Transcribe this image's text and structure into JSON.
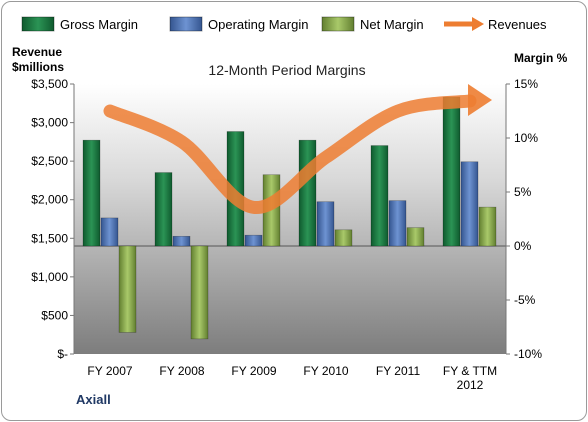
{
  "chart_data": {
    "type": "bar",
    "title": "12-Month Period Margins",
    "categories": [
      "FY 2007",
      "FY 2008",
      "FY 2009",
      "FY 2010",
      "FY 2011",
      "FY & TTM 2012"
    ],
    "left_axis": {
      "label_line1": "Revenue",
      "label_line2": "$millions",
      "ticks": [
        "$-",
        "$500",
        "$1,000",
        "$1,500",
        "$2,000",
        "$2,500",
        "$3,000",
        "$3,500"
      ],
      "ylim": [
        0,
        3500
      ]
    },
    "right_axis": {
      "label": "Margin %",
      "ticks": [
        "-10%",
        "-5%",
        "0%",
        "5%",
        "10%",
        "15%"
      ],
      "ylim": [
        -10,
        15
      ]
    },
    "series": [
      {
        "name": "Gross Margin",
        "axis": "right",
        "color": "#1e7a44",
        "values": [
          9.8,
          6.8,
          10.6,
          9.8,
          9.3,
          13.8
        ]
      },
      {
        "name": "Operating Margin",
        "axis": "right",
        "color": "#4f77bd",
        "values": [
          2.6,
          0.9,
          1.0,
          4.1,
          4.2,
          7.8
        ]
      },
      {
        "name": "Net Margin",
        "axis": "right",
        "color": "#8aae4c",
        "values": [
          -8.0,
          -8.6,
          6.6,
          1.5,
          1.7,
          3.6
        ]
      },
      {
        "name": "Revenues",
        "type": "line",
        "axis": "left",
        "color": "#ed7d31",
        "values": [
          3150,
          2750,
          1900,
          2550,
          3150,
          3280
        ]
      }
    ],
    "legend_position": "top",
    "grid": false
  },
  "footer": {
    "company": "Axiall"
  }
}
